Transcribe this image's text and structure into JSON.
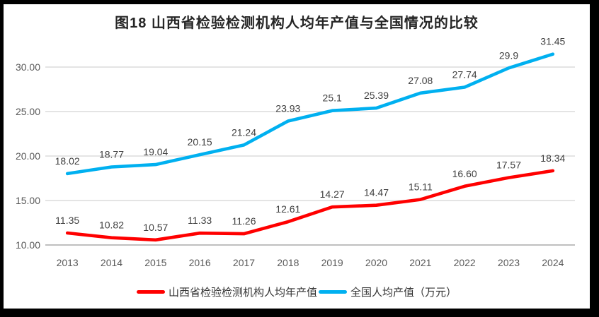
{
  "title": "图18 山西省检验检测机构人均年产值与全国情况的比较",
  "frame_color": "#000000",
  "chart_data": {
    "type": "line",
    "title": "图18 山西省检验检测机构人均年产值与全国情况的比较",
    "categories": [
      "2013",
      "2014",
      "2015",
      "2016",
      "2017",
      "2018",
      "2019",
      "2020",
      "2021",
      "2022",
      "2023",
      "2024"
    ],
    "series": [
      {
        "name": "山西省检验检测机构人均年产值",
        "color": "#FF0000",
        "values": [
          11.35,
          10.82,
          10.57,
          11.33,
          11.26,
          12.61,
          14.27,
          14.47,
          15.11,
          16.6,
          17.57,
          18.34
        ],
        "labels": [
          "11.35",
          "10.82",
          "10.57",
          "11.33",
          "11.26",
          "12.61",
          "14.27",
          "14.47",
          "15.11",
          "16.60",
          "17.57",
          "18.34"
        ]
      },
      {
        "name": "全国人均产值（万元）",
        "color": "#00B0F0",
        "values": [
          18.02,
          18.77,
          19.04,
          20.15,
          21.24,
          23.93,
          25.1,
          25.39,
          27.08,
          27.74,
          29.9,
          31.45
        ],
        "labels": [
          "18.02",
          "18.77",
          "19.04",
          "20.15",
          "21.24",
          "23.93",
          "25.1",
          "25.39",
          "27.08",
          "27.74",
          "29.9",
          "31.45"
        ]
      }
    ],
    "ylim": [
      10,
      30
    ],
    "yticks": [
      "10.00",
      "15.00",
      "20.00",
      "25.00",
      "30.00"
    ],
    "xlabel": "",
    "ylabel": "",
    "grid": true,
    "legend_position": "bottom",
    "gridline_color": "#DCDCDC",
    "axisline_color": "#BFBFBF",
    "tick_color": "#595959",
    "datalabel_color": "#404040"
  }
}
